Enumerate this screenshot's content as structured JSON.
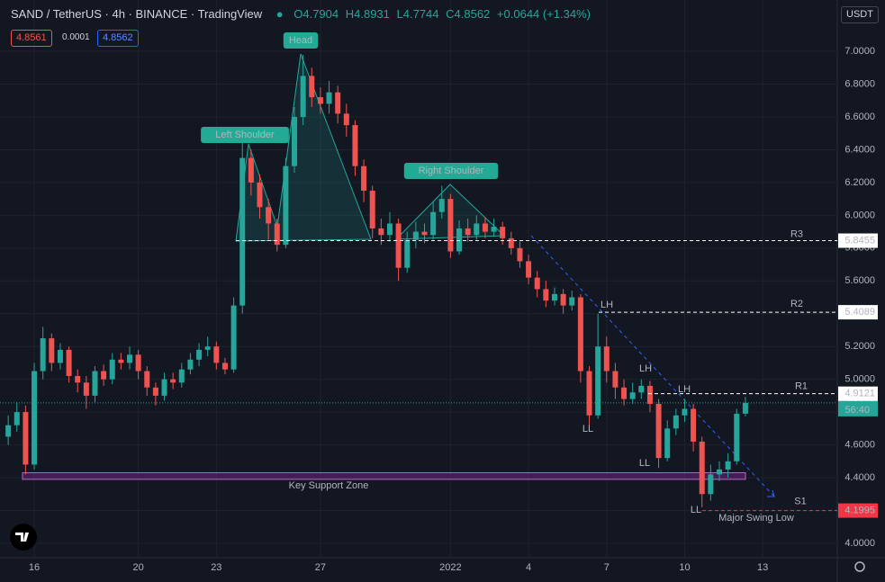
{
  "chart_data": {
    "type": "candlestick",
    "title": "SAND / TetherUS · 4h · BINANCE · TradingView",
    "legend": {
      "open": "O4.7904",
      "high": "H4.8931",
      "low": "L4.7744",
      "close": "C4.8562",
      "change": "+0.0644 (+1.34%)"
    },
    "buttons": {
      "sell": "4.8561",
      "spread": "0.0001",
      "buy": "4.8562"
    },
    "currency": "USDT",
    "up_color": "#26a69a",
    "down_color": "#ef5350",
    "open": [
      4.65,
      4.72,
      4.8,
      4.48,
      5.05,
      5.25,
      5.1,
      5.18,
      5.02,
      4.98,
      4.9,
      5.05,
      5.0,
      5.12,
      5.1,
      5.15,
      5.05,
      4.95,
      4.9,
      5.0,
      4.98,
      5.06,
      5.12,
      5.18,
      5.2,
      5.1,
      5.06,
      5.45,
      6.35,
      6.2,
      6.05,
      5.95,
      5.82,
      6.3,
      6.6,
      6.85,
      6.72,
      6.68,
      6.75,
      6.62,
      6.55,
      6.3,
      6.15,
      5.92,
      5.88,
      5.95,
      5.68,
      5.85,
      5.9,
      5.88,
      6.02,
      6.1,
      5.78,
      5.92,
      5.88,
      5.95,
      5.9,
      5.93,
      5.86,
      5.8,
      5.72,
      5.62,
      5.55,
      5.48,
      5.52,
      5.45,
      5.5,
      5.05,
      4.78,
      5.2,
      5.05,
      4.95,
      4.88,
      4.92,
      4.96,
      4.85,
      4.52,
      4.7,
      4.78,
      4.82,
      4.62,
      4.3,
      4.42,
      4.45,
      4.5,
      4.7904
    ],
    "high": [
      4.78,
      4.86,
      4.84,
      5.1,
      5.32,
      5.28,
      5.22,
      5.2,
      5.06,
      5.02,
      5.08,
      5.09,
      5.16,
      5.16,
      5.2,
      5.18,
      5.08,
      4.98,
      5.04,
      5.04,
      5.1,
      5.16,
      5.22,
      5.26,
      5.23,
      5.13,
      5.5,
      6.45,
      6.4,
      6.25,
      6.1,
      5.98,
      6.35,
      6.66,
      6.98,
      6.9,
      6.78,
      6.82,
      6.79,
      6.68,
      6.58,
      6.34,
      6.18,
      5.98,
      6.02,
      5.98,
      5.9,
      5.96,
      5.95,
      6.08,
      6.18,
      6.13,
      5.97,
      5.98,
      6.0,
      5.99,
      5.98,
      5.96,
      5.9,
      5.84,
      5.76,
      5.66,
      5.6,
      5.56,
      5.55,
      5.54,
      5.52,
      5.08,
      5.4,
      5.26,
      5.1,
      5.0,
      4.98,
      5.0,
      4.99,
      4.88,
      4.75,
      4.82,
      4.88,
      4.85,
      4.65,
      4.48,
      4.5,
      4.55,
      4.82,
      4.8931
    ],
    "low": [
      4.6,
      4.68,
      4.42,
      4.45,
      5.0,
      5.05,
      5.06,
      4.98,
      4.92,
      4.82,
      4.86,
      4.96,
      4.97,
      5.06,
      5.06,
      5.0,
      4.9,
      4.84,
      4.87,
      4.94,
      4.95,
      5.03,
      5.08,
      5.14,
      5.06,
      5.03,
      5.04,
      5.4,
      6.12,
      5.98,
      5.85,
      5.78,
      5.8,
      6.26,
      6.55,
      6.66,
      6.62,
      6.62,
      6.56,
      6.48,
      6.24,
      6.08,
      5.86,
      5.82,
      5.84,
      5.6,
      5.65,
      5.8,
      5.83,
      5.85,
      5.98,
      5.74,
      5.76,
      5.84,
      5.85,
      5.86,
      5.87,
      5.82,
      5.76,
      5.68,
      5.58,
      5.5,
      5.44,
      5.45,
      5.4,
      5.42,
      4.98,
      4.72,
      4.76,
      4.98,
      4.88,
      4.84,
      4.85,
      4.88,
      4.8,
      4.46,
      4.5,
      4.66,
      4.74,
      4.56,
      4.22,
      4.26,
      4.38,
      4.4,
      4.48,
      4.7744
    ],
    "close": [
      4.72,
      4.8,
      4.48,
      5.05,
      5.25,
      5.1,
      5.18,
      5.02,
      4.98,
      4.9,
      5.05,
      5.0,
      5.12,
      5.1,
      5.15,
      5.05,
      4.95,
      4.9,
      5.0,
      4.98,
      5.06,
      5.12,
      5.18,
      5.2,
      5.1,
      5.06,
      5.45,
      6.35,
      6.2,
      6.05,
      5.95,
      5.82,
      6.3,
      6.6,
      6.85,
      6.72,
      6.68,
      6.75,
      6.62,
      6.55,
      6.3,
      6.15,
      5.92,
      5.88,
      5.95,
      5.68,
      5.85,
      5.9,
      5.88,
      6.02,
      6.1,
      5.78,
      5.92,
      5.88,
      5.95,
      5.9,
      5.93,
      5.86,
      5.8,
      5.72,
      5.62,
      5.55,
      5.48,
      5.52,
      5.45,
      5.5,
      5.05,
      4.78,
      5.2,
      5.05,
      4.95,
      4.88,
      4.92,
      4.96,
      4.85,
      4.52,
      4.7,
      4.78,
      4.82,
      4.62,
      4.3,
      4.42,
      4.45,
      4.5,
      4.79,
      4.8562
    ],
    "last_price": {
      "value": 4.8562,
      "countdown": "56:40"
    },
    "xlim": [
      -0.95,
      95.6
    ],
    "xticks": [
      {
        "value": 3,
        "label": "16"
      },
      {
        "value": 15,
        "label": "20"
      },
      {
        "value": 24,
        "label": "23"
      },
      {
        "value": 36,
        "label": "27"
      },
      {
        "value": 51,
        "label": "2022"
      },
      {
        "value": 60,
        "label": "4"
      },
      {
        "value": 69,
        "label": "7"
      },
      {
        "value": 78,
        "label": "10"
      },
      {
        "value": 87,
        "label": "13"
      }
    ],
    "ylim": [
      3.912,
      7.313
    ],
    "yticks": [
      {
        "value": 4.0,
        "label": "4.0000"
      },
      {
        "value": 4.2,
        "label": "4.2000"
      },
      {
        "value": 4.4,
        "label": "4.4000"
      },
      {
        "value": 4.6,
        "label": "4.6000"
      },
      {
        "value": 4.8,
        "label": "4.8000"
      },
      {
        "value": 5.0,
        "label": "5.0000"
      },
      {
        "value": 5.2,
        "label": "5.2000"
      },
      {
        "value": 5.4,
        "label": "5.4000"
      },
      {
        "value": 5.6,
        "label": "5.6000"
      },
      {
        "value": 5.8,
        "label": "5.8000"
      },
      {
        "value": 6.0,
        "label": "6.0000"
      },
      {
        "value": 6.2,
        "label": "6.2000"
      },
      {
        "value": 6.4,
        "label": "6.4000"
      },
      {
        "value": 6.6,
        "label": "6.6000"
      },
      {
        "value": 6.8,
        "label": "6.8000"
      },
      {
        "value": 7.0,
        "label": "7.0000"
      }
    ],
    "levels": [
      {
        "name": "R3",
        "value": 5.8455,
        "color": "#ffffff"
      },
      {
        "name": "R2",
        "value": 5.4089,
        "color": "#ffffff"
      },
      {
        "name": "R1",
        "value": 4.9121,
        "color": "#ffffff"
      },
      {
        "name": "S1",
        "value": 4.1995,
        "color": "#f23645"
      }
    ],
    "support_zone": {
      "label": "Key Support Zone",
      "range": [
        4.39,
        4.43
      ]
    },
    "annotations": [
      "Head",
      "Left Shoulder",
      "Right Shoulder",
      "LH",
      "LH",
      "LH",
      "LL",
      "LL",
      "LL",
      "Major Swing Low"
    ]
  }
}
